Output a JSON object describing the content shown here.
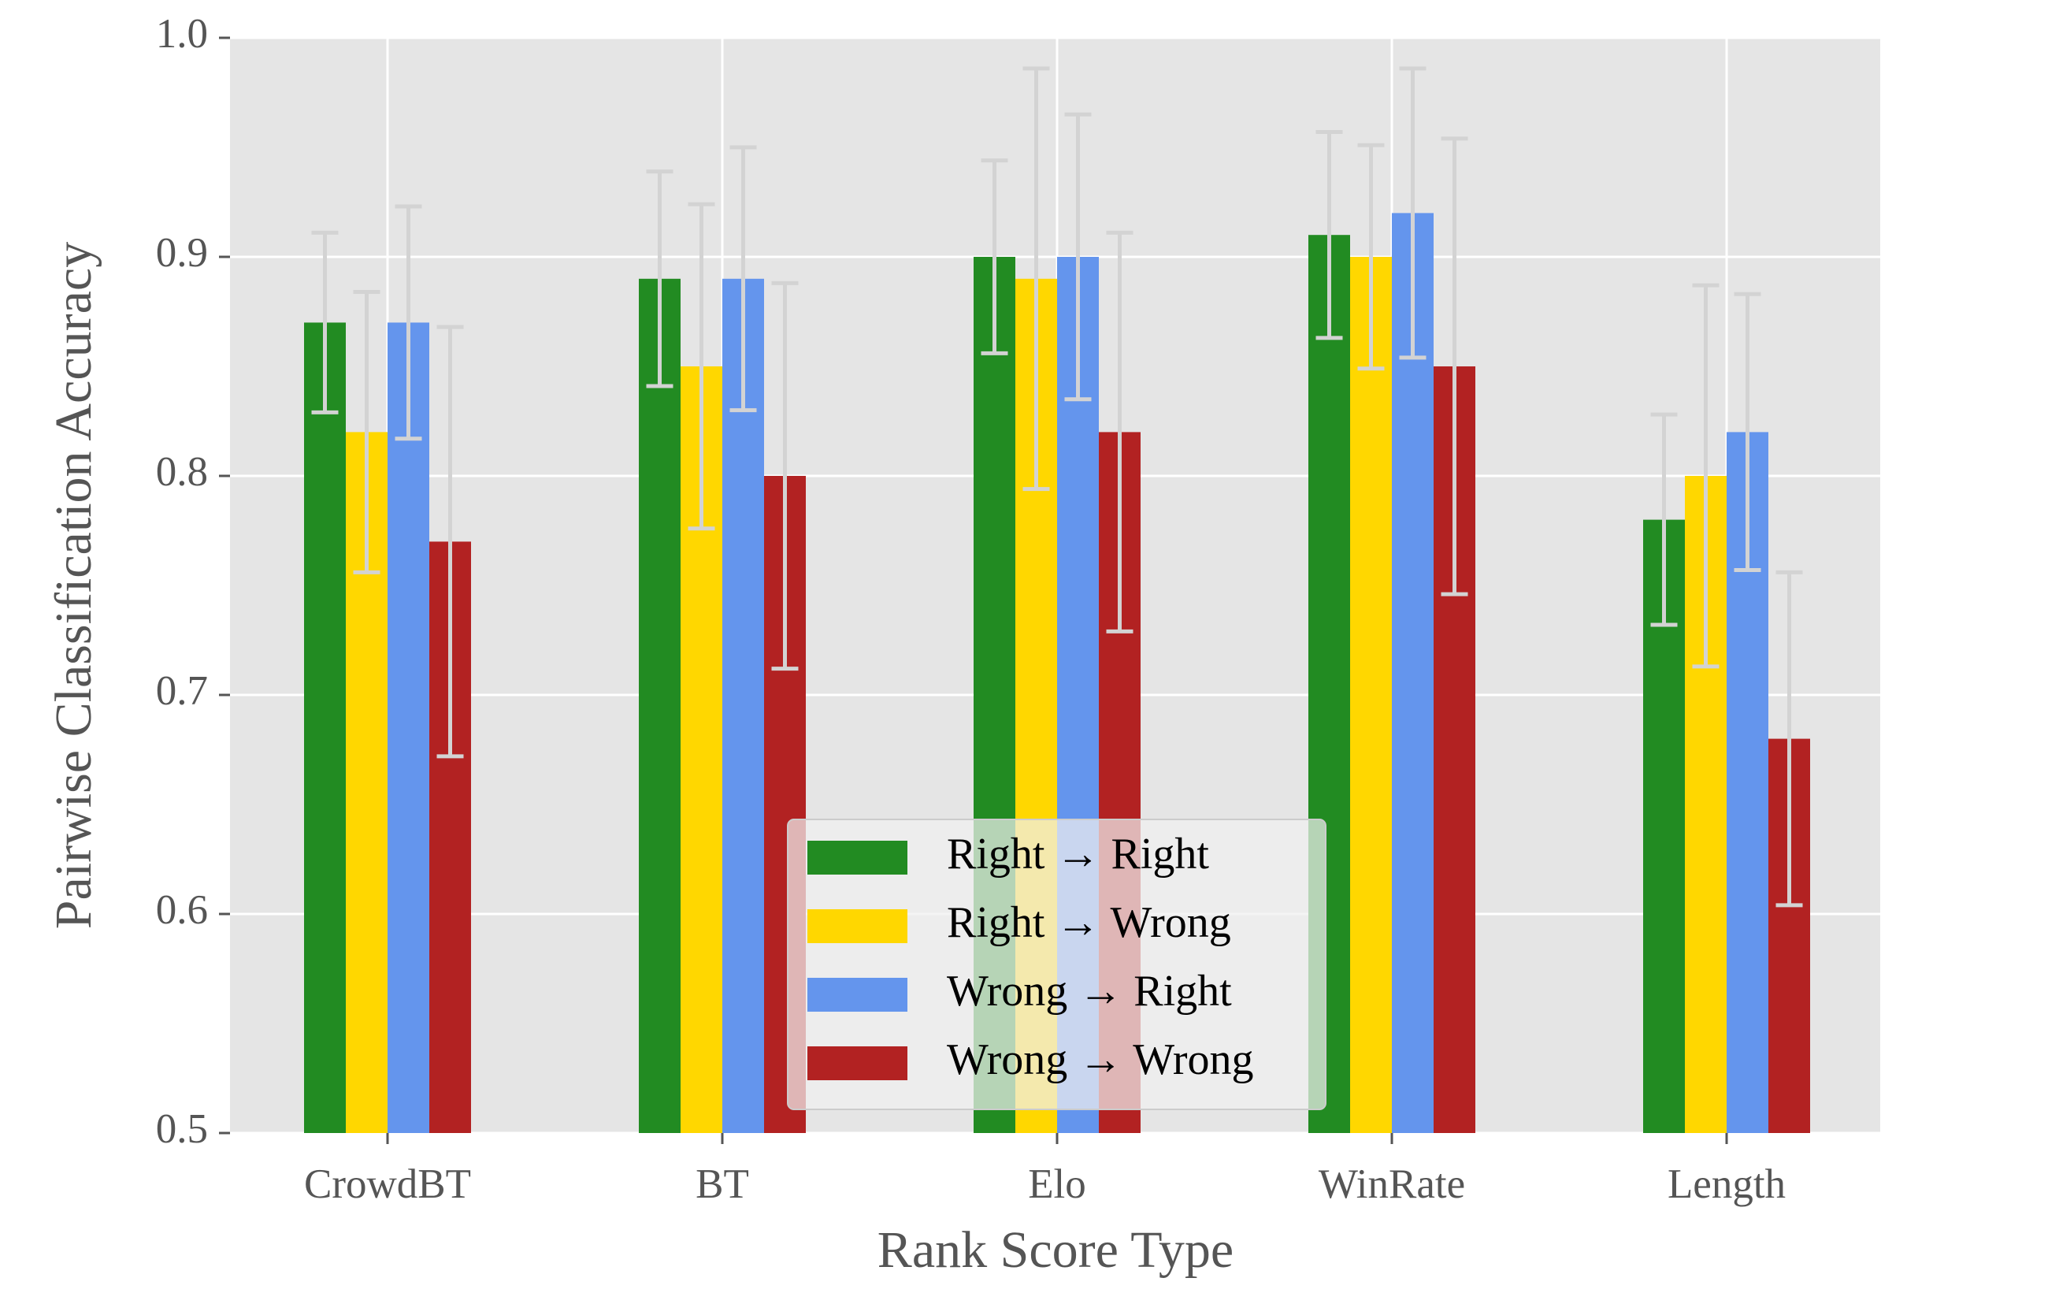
{
  "chart_data": {
    "type": "bar",
    "x_label": "Rank Score Type",
    "y_label": "Pairwise Classification Accuracy",
    "categories": [
      "CrowdBT",
      "BT",
      "Elo",
      "WinRate",
      "Length"
    ],
    "series": [
      {
        "name": "Right → Right",
        "color": "#228b22",
        "values": [
          0.87,
          0.89,
          0.9,
          0.91,
          0.78
        ],
        "errors": [
          0.041,
          0.049,
          0.044,
          0.047,
          0.048
        ]
      },
      {
        "name": "Right → Wrong",
        "color": "#ffd700",
        "values": [
          0.82,
          0.85,
          0.89,
          0.9,
          0.8
        ],
        "errors": [
          0.064,
          0.074,
          0.096,
          0.051,
          0.087
        ]
      },
      {
        "name": "Wrong → Right",
        "color": "#6495ed",
        "values": [
          0.87,
          0.89,
          0.9,
          0.92,
          0.82
        ],
        "errors": [
          0.053,
          0.06,
          0.065,
          0.066,
          0.063
        ]
      },
      {
        "name": "Wrong → Wrong",
        "color": "#b22222",
        "values": [
          0.77,
          0.8,
          0.82,
          0.85,
          0.68
        ],
        "errors": [
          0.098,
          0.088,
          0.091,
          0.104,
          0.076
        ]
      }
    ],
    "error_color": "#d3d3d3",
    "ylim": [
      0.5,
      1.0
    ],
    "yticks": [
      0.5,
      0.6,
      0.7,
      0.8,
      0.9,
      {
        "value": 1.0,
        "label": "1.0"
      }
    ],
    "grid": true,
    "legend": "lower center"
  }
}
